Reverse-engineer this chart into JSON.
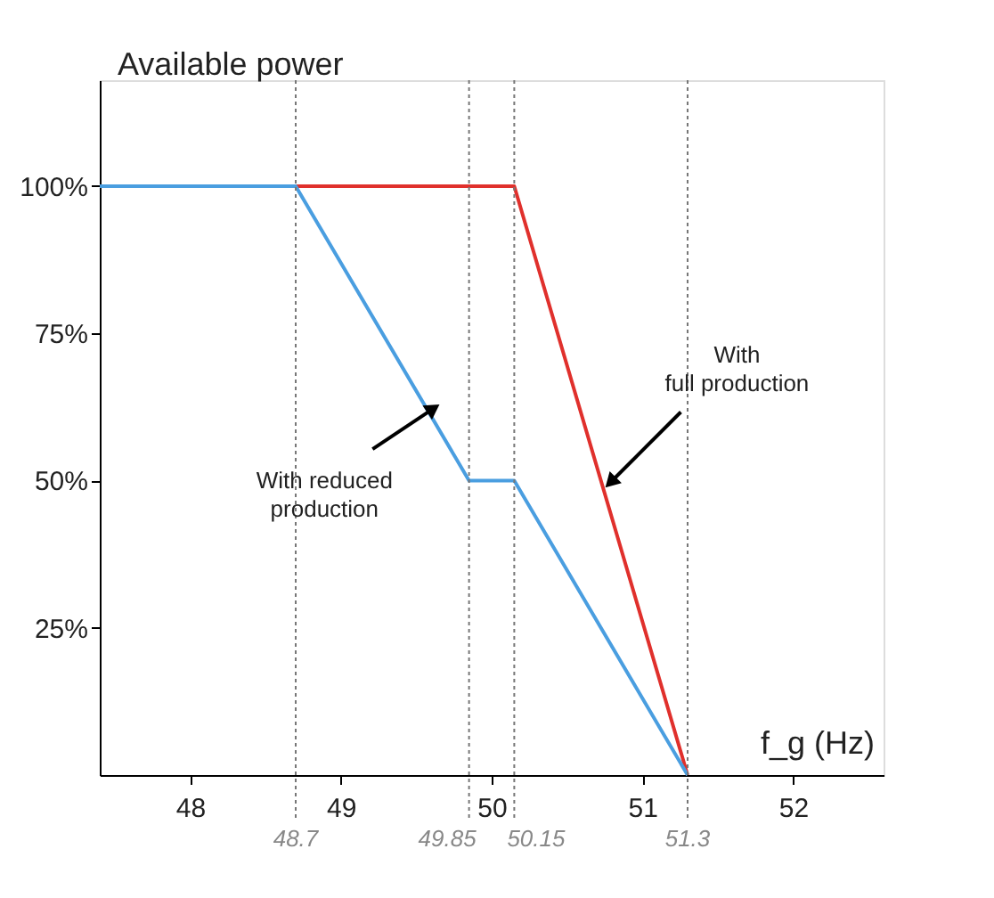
{
  "chart_data": {
    "type": "line",
    "ylabel": "Available power",
    "xlabel": "f_g (Hz)",
    "xlim": [
      47.4,
      52.6
    ],
    "ylim": [
      0,
      118
    ],
    "xticks": [
      48,
      49,
      50,
      51,
      52
    ],
    "yticks": [
      {
        "value": 25,
        "label": "25%"
      },
      {
        "value": 50,
        "label": "50%"
      },
      {
        "value": 75,
        "label": "75%"
      },
      {
        "value": 100,
        "label": "100%"
      }
    ],
    "series": [
      {
        "color": "#e0302c",
        "x": [
          48.7,
          50.15,
          51.3
        ],
        "values": [
          100,
          100,
          0
        ]
      },
      {
        "color": "#4a9ee0",
        "x": [
          47.4,
          48.7,
          49.85,
          50.15,
          51.3
        ],
        "values": [
          100,
          100,
          50,
          50,
          0
        ]
      }
    ],
    "ref_lines": [
      {
        "axis": "x",
        "value": 48.7,
        "label": "48.7",
        "line_style": "dotted"
      },
      {
        "axis": "x",
        "value": 49.85,
        "label": "49.85",
        "line_style": "dotted"
      },
      {
        "axis": "x",
        "value": 50.15,
        "label": "50.15",
        "line_style": "dotted"
      },
      {
        "axis": "x",
        "value": 51.3,
        "label": "51.3",
        "line_style": "dotted"
      }
    ],
    "annotations": [
      {
        "text": "With reduced production",
        "x": 49.6,
        "y": 62
      },
      {
        "text": "With full production",
        "x": 50.8,
        "y": 50
      }
    ],
    "grid": false,
    "marker": "none",
    "line_style": "solid"
  }
}
